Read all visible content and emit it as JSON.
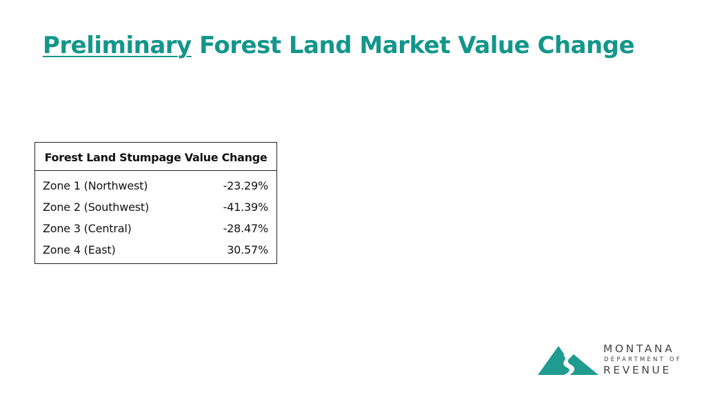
{
  "title": {
    "underlined_word": "Preliminary",
    "rest": " Forest Land Market Value Change",
    "color": "#13968b"
  },
  "table": {
    "header": "Forest Land Stumpage Value Change",
    "rows": [
      {
        "zone": "Zone 1 (Northwest)",
        "value": "-23.29%"
      },
      {
        "zone": "Zone 2 (Southwest)",
        "value": "-41.39%"
      },
      {
        "zone": "Zone 3 (Central)",
        "value": "-28.47%"
      },
      {
        "zone": "Zone 4 (East)",
        "value": "30.57%"
      }
    ]
  },
  "logo": {
    "line1": "MONTANA",
    "line2": "DEPARTMENT OF",
    "line3": "REVENUE",
    "color": "#1f9b90"
  }
}
